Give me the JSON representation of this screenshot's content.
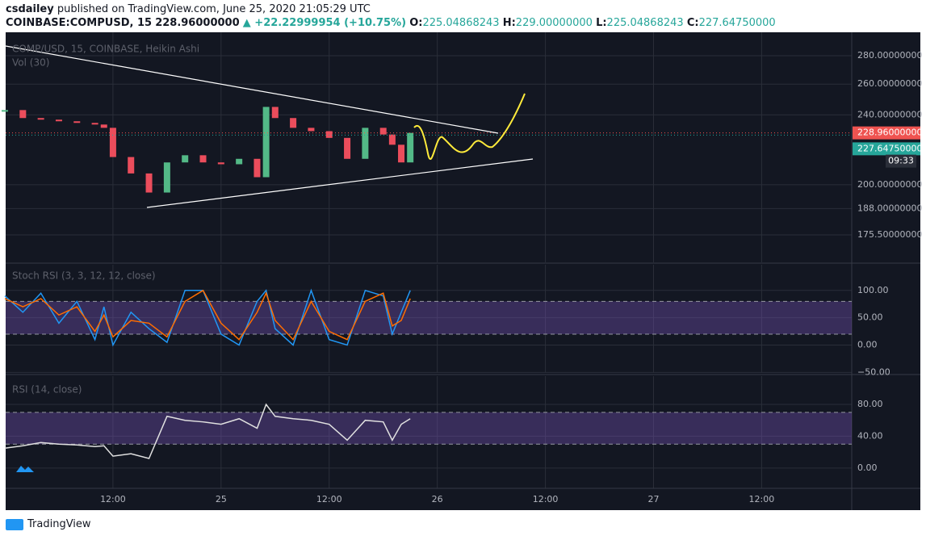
{
  "header": {
    "author": "csdailey",
    "published": "published on TradingView.com, June 25, 2020 21:05:29 UTC",
    "symbol": "COINBASE:COMPUSD, 15",
    "price": "228.96000000",
    "change": "▲ +22.22999954 (+10.75%)",
    "ohlc": [
      {
        "key": "O:",
        "value": "225.04868243"
      },
      {
        "key": "H:",
        "value": "229.00000000"
      },
      {
        "key": "L:",
        "value": "225.04868243"
      },
      {
        "key": "C:",
        "value": "227.64750000"
      }
    ]
  },
  "chart_data": [
    {
      "type": "candlestick",
      "legend": "COMP/USD, 15, COINBASE, Heikin Ashi",
      "volume_legend": "Vol (30)",
      "log_scale": true,
      "x": [
        0,
        2,
        4,
        6,
        8,
        10,
        11,
        12,
        14,
        16,
        18,
        20,
        22,
        24,
        26,
        28,
        29,
        30,
        32,
        34,
        36,
        38,
        40,
        42,
        43,
        44,
        45
      ],
      "values": [
        243,
        238,
        237,
        236,
        235,
        234,
        232,
        215,
        206,
        196,
        212,
        216,
        212,
        211,
        214,
        204,
        245,
        238,
        232,
        230,
        226,
        214,
        232,
        228,
        222,
        212,
        228.96
      ],
      "up_color": "#53b987",
      "down_color": "#eb4d5c",
      "ylim": [
        163.4,
        297.6
      ],
      "yticks": [
        {
          "value": 175.5,
          "label": "175.50000000"
        },
        {
          "value": 188,
          "label": "188.00000000"
        },
        {
          "value": 200,
          "label": "200.00000000"
        },
        {
          "value": 240,
          "label": "240.00000000"
        },
        {
          "value": 260,
          "label": "260.00000000"
        },
        {
          "value": 280,
          "label": "280.00000000"
        }
      ],
      "price_tags": [
        {
          "value": 228.96,
          "label": "228.96000000",
          "color": "#ef5350"
        },
        {
          "value": 227.6475,
          "label": "227.64750000",
          "color": "#26a69a"
        }
      ],
      "countdown": "09:33"
    },
    {
      "type": "line",
      "legend": "Stoch RSI (3, 3, 12, 12, close)",
      "x": [
        0,
        2,
        4,
        6,
        8,
        10,
        11,
        12,
        14,
        16,
        18,
        20,
        22,
        24,
        26,
        28,
        29,
        30,
        32,
        34,
        36,
        38,
        40,
        42,
        43,
        44,
        45
      ],
      "series": [
        {
          "name": "K",
          "color": "#2196f3",
          "values": [
            90,
            60,
            95,
            40,
            80,
            10,
            70,
            0,
            60,
            30,
            5,
            100,
            100,
            20,
            0,
            80,
            100,
            30,
            0,
            100,
            10,
            0,
            100,
            90,
            20,
            60,
            100
          ]
        },
        {
          "name": "D",
          "color": "#ff6d00",
          "values": [
            85,
            70,
            85,
            55,
            70,
            25,
            55,
            15,
            45,
            40,
            15,
            80,
            100,
            40,
            10,
            60,
            95,
            45,
            10,
            80,
            25,
            10,
            80,
            95,
            35,
            45,
            85
          ]
        }
      ],
      "band": [
        20,
        80
      ],
      "ylim": [
        -51,
        147
      ],
      "yticks": [
        {
          "value": -50,
          "label": "−50.00"
        },
        {
          "value": 0,
          "label": "0.00"
        },
        {
          "value": 50,
          "label": "50.00"
        },
        {
          "value": 100,
          "label": "100.00"
        }
      ]
    },
    {
      "type": "line",
      "legend": "RSI (14, close)",
      "x": [
        0,
        2,
        4,
        6,
        8,
        10,
        11,
        12,
        14,
        16,
        18,
        20,
        22,
        24,
        26,
        28,
        29,
        30,
        32,
        34,
        36,
        38,
        40,
        42,
        43,
        44,
        45
      ],
      "series": [
        {
          "name": "RSI",
          "color": "#e0e0e0",
          "values": [
            25,
            28,
            32,
            30,
            29,
            27,
            28,
            15,
            18,
            12,
            65,
            60,
            58,
            55,
            62,
            50,
            80,
            65,
            62,
            60,
            55,
            35,
            60,
            58,
            35,
            55,
            62
          ]
        }
      ],
      "band": [
        30,
        70
      ],
      "ylim": [
        -25.5,
        115.5
      ],
      "yticks": [
        {
          "value": 0,
          "label": "0.00"
        },
        {
          "value": 40,
          "label": "40.00"
        },
        {
          "value": 80,
          "label": "80.00"
        }
      ],
      "xlim": [
        0,
        94
      ],
      "xticks": [
        {
          "value": 12,
          "label": "12:00"
        },
        {
          "value": 24,
          "label": "25"
        },
        {
          "value": 36,
          "label": "12:00"
        },
        {
          "value": 48,
          "label": "26"
        },
        {
          "value": 60,
          "label": "12:00"
        },
        {
          "value": 72,
          "label": "27"
        },
        {
          "value": 84,
          "label": "12:00"
        }
      ]
    }
  ],
  "footer": "TradingView"
}
